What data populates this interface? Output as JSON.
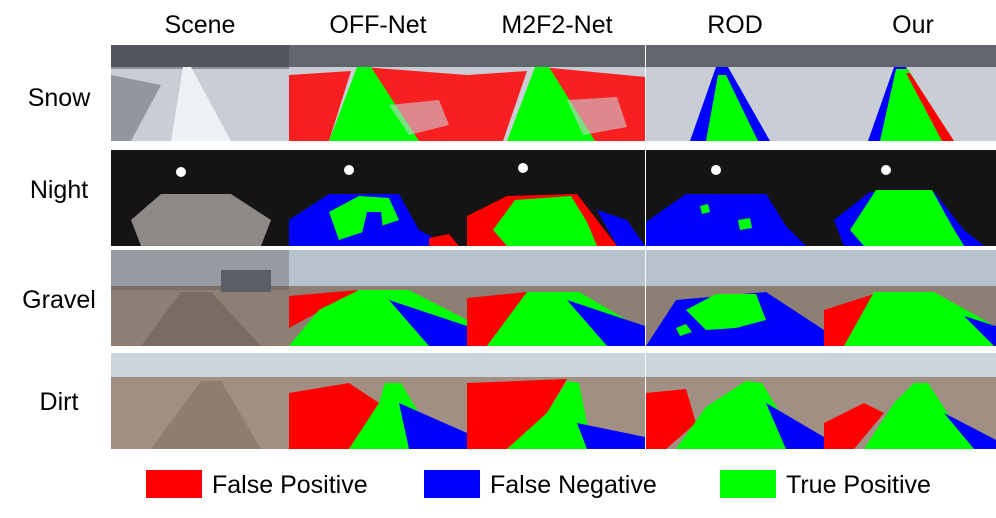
{
  "figure": {
    "columns": [
      "Scene",
      "OFF-Net",
      "M2F2-Net",
      "ROD",
      "Our"
    ],
    "rows": [
      "Snow",
      "Night",
      "Gravel",
      "Dirt"
    ]
  },
  "legend": [
    {
      "label": "False Positive",
      "color": "#ff0000"
    },
    {
      "label": "False Negative",
      "color": "#0000ff"
    },
    {
      "label": "True Positive",
      "color": "#00ff00"
    }
  ]
}
